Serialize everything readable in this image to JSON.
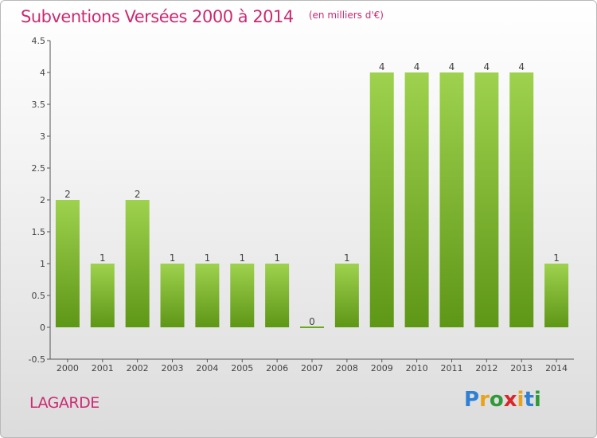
{
  "header": {
    "title": "Subventions Versées 2000 à 2014",
    "unit": "(en milliers d'€)"
  },
  "footer": {
    "commune": "LAGARDE",
    "logo_letters": [
      {
        "ch": "P",
        "color": "#2f7fd3"
      },
      {
        "ch": "r",
        "color": "#e9a21c"
      },
      {
        "ch": "o",
        "color": "#2f9a37"
      },
      {
        "ch": "x",
        "color": "#d9262b"
      },
      {
        "ch": "i",
        "color": "#e9a21c"
      },
      {
        "ch": "t",
        "color": "#2f7fd3"
      },
      {
        "ch": "i",
        "color": "#2f9a37"
      }
    ]
  },
  "chart_data": {
    "type": "bar",
    "categories": [
      "2000",
      "2001",
      "2002",
      "2003",
      "2004",
      "2005",
      "2006",
      "2007",
      "2008",
      "2009",
      "2010",
      "2011",
      "2012",
      "2013",
      "2014"
    ],
    "values": [
      2,
      1,
      2,
      1,
      1,
      1,
      1,
      0,
      1,
      4,
      4,
      4,
      4,
      4,
      1
    ],
    "value_labels": [
      "2",
      "1",
      "2",
      "1",
      "1",
      "1",
      "1",
      "0",
      "1",
      "4",
      "4",
      "4",
      "4",
      "4",
      "1"
    ],
    "ylim": [
      -0.5,
      4.5
    ],
    "yticks": [
      -0.5,
      0,
      0.5,
      1,
      1.5,
      2,
      2.5,
      3,
      3.5,
      4,
      4.5
    ],
    "ytick_labels": [
      "-0.5",
      "0",
      "0.5",
      "1",
      "1.5",
      "2",
      "2.5",
      "3",
      "3.5",
      "4",
      "4.5"
    ],
    "grid": false,
    "bar_color_top": "#9ed24e",
    "bar_color_bottom": "#5e9616",
    "zero_bar_color": "#6aa91f"
  }
}
